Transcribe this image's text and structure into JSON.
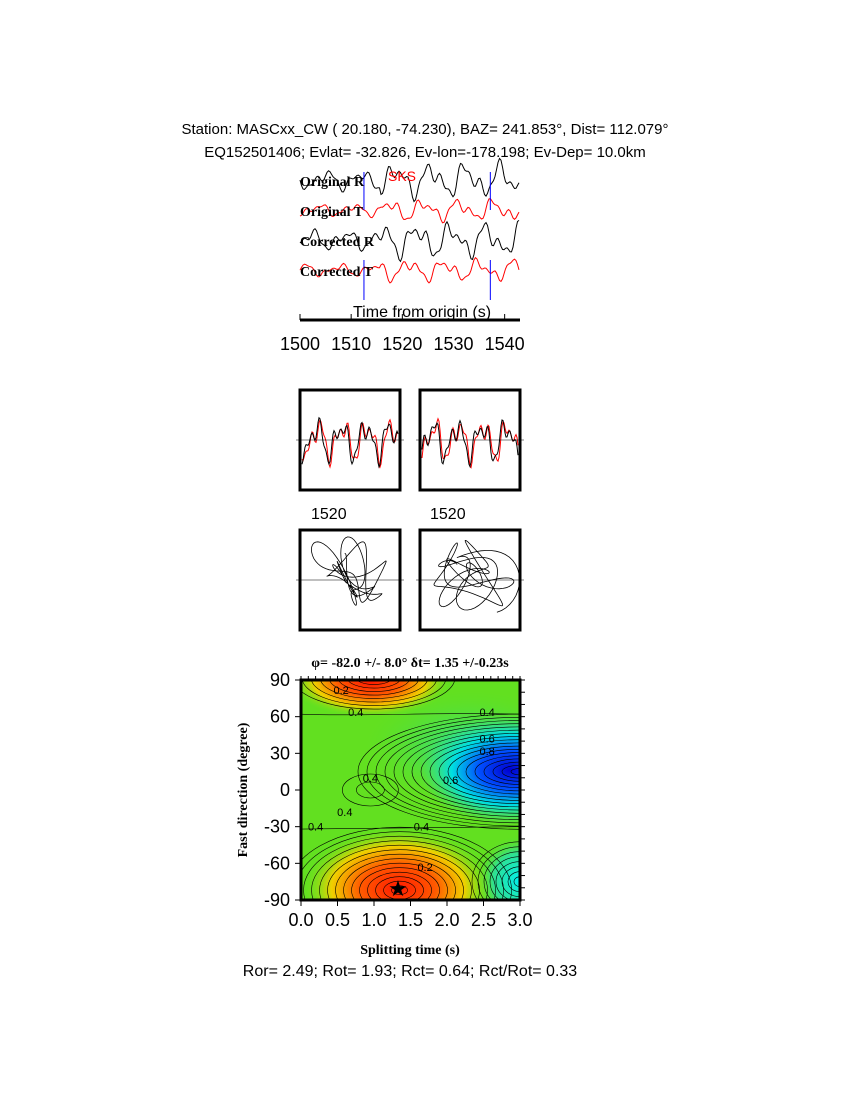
{
  "header": {
    "line1": "Station: MASCxx_CW (  20.180,  -74.230), BAZ=  241.853°, Dist=  112.079°",
    "line2": "EQ152501406; Evlat= -32.826, Ev-lon=-178.198; Ev-Dep= 10.0km"
  },
  "chart_data": [
    {
      "type": "line",
      "title": "",
      "xlabel": "Time from origin (s)",
      "xlim": [
        1500,
        1543
      ],
      "x_ticks": [
        "1500",
        "1510",
        "1520",
        "1530",
        "1540"
      ],
      "phase_label": "SKS",
      "window_markers": [
        1512.5,
        1537.2
      ],
      "series": [
        {
          "name": "Original R",
          "color": "#000000"
        },
        {
          "name": "Original T",
          "color": "#ff0000"
        },
        {
          "name": "Corrected R",
          "color": "#000000"
        },
        {
          "name": "Corrected T",
          "color": "#ff0000"
        }
      ],
      "panel_tick_labels": [
        "1520",
        "1520"
      ]
    },
    {
      "type": "heatmap",
      "title": "φ= -82.0 +/- 8.0° δt= 1.35 +/-0.23s",
      "xlabel": "Splitting time (s)",
      "ylabel": "Fast direction (degree)",
      "xlim": [
        0,
        3.0
      ],
      "ylim": [
        -90,
        90
      ],
      "x_ticks": [
        "0.0",
        "0.5",
        "1.0",
        "1.5",
        "2.0",
        "2.5",
        "3.0"
      ],
      "y_ticks": [
        "90",
        "60",
        "30",
        "0",
        "-30",
        "-60",
        "-90"
      ],
      "contour_labels": [
        "0.4",
        "0.4",
        "0.6",
        "0.8",
        "0.6",
        "0.4",
        "0.4",
        "0.4",
        "0.4",
        "0.2",
        "0.2"
      ],
      "best_fit": {
        "dt": 1.35,
        "phi": -82.0
      },
      "colors": {
        "low": "#ff2000",
        "mid": "#60e020",
        "high": "#0000e0"
      }
    }
  ],
  "footer": "Ror= 2.49; Rot= 1.93; Rct= 0.64; Rct/Rot= 0.33"
}
